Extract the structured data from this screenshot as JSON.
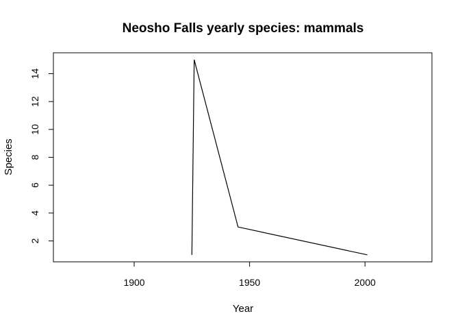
{
  "chart_data": {
    "type": "line",
    "title": "Neosho Falls yearly species: mammals",
    "xlabel": "Year",
    "ylabel": "Species",
    "xlim": [
      1865,
      2029
    ],
    "ylim": [
      0.5,
      15.5
    ],
    "xticks": [
      1900,
      1950,
      2000
    ],
    "yticks": [
      2,
      4,
      6,
      8,
      10,
      12,
      14
    ],
    "grid": false,
    "series": [
      {
        "x": [
          1925,
          1926,
          1945,
          2001
        ],
        "y": [
          1,
          15,
          3,
          1
        ]
      }
    ]
  }
}
